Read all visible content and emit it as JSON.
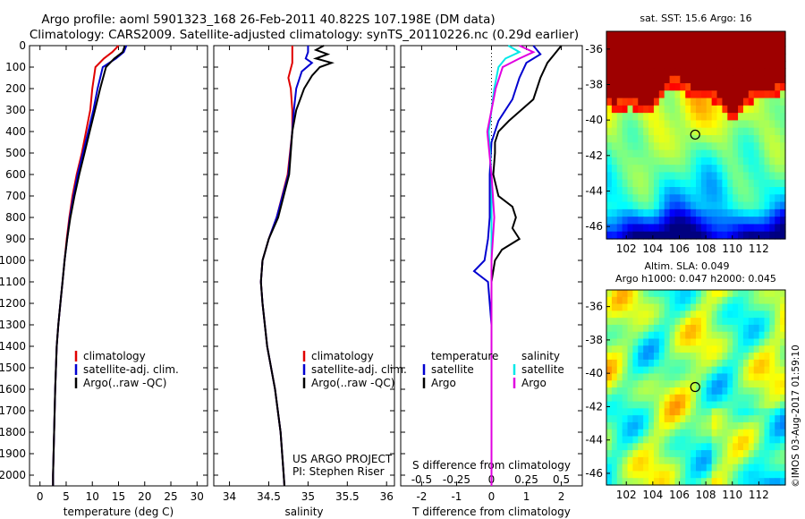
{
  "title": {
    "line1": "Argo profile: aoml 5901323_168 26-Feb-2011 40.822S 107.198E (DM data)",
    "line2": "Climatology: CARS2009. Satellite-adjusted climatology: synTS_20110226.nc (0.29d earlier)"
  },
  "colors": {
    "climatology": "#e00000",
    "satellite": "#0000d0",
    "argo": "#000000",
    "sal_satellite": "#00e8e8",
    "sal_argo": "#e000e0"
  },
  "depth_ticks": [
    0,
    100,
    200,
    300,
    400,
    500,
    600,
    700,
    800,
    900,
    1000,
    1100,
    1200,
    1300,
    1400,
    1500,
    1600,
    1700,
    1800,
    1900,
    2000
  ],
  "panels": {
    "temperature": {
      "xlabel": "temperature (deg C)",
      "xlim": [
        -2,
        32
      ],
      "xticks": [
        0,
        5,
        10,
        15,
        20,
        25,
        30
      ],
      "xtick_labels": [
        "0",
        "5",
        "10",
        "15",
        "20",
        "25",
        "30"
      ],
      "legend": [
        "climatology",
        "satellite-adj. clim.",
        "Argo(..raw -QC)"
      ]
    },
    "salinity": {
      "xlabel": "salinity",
      "xlim": [
        33.8,
        36.1
      ],
      "xticks": [
        34,
        34.5,
        35,
        35.5,
        36
      ],
      "xtick_labels": [
        "34",
        "34.5",
        "35",
        "35.5",
        "36"
      ],
      "legend": [
        "climatology",
        "satellite-adj. clim.",
        "Argo(..raw -QC)"
      ],
      "credit1": "US ARGO PROJECT",
      "credit2": "PI: Stephen Riser"
    },
    "difference": {
      "xlabel": "T difference from climatology",
      "top_label": "S difference from climatology",
      "xlim": [
        -2.6,
        2.6
      ],
      "xticks": [
        -2,
        -1,
        0,
        1,
        2
      ],
      "xtick_labels": [
        "-2",
        "-1",
        "0",
        "1",
        "2"
      ],
      "sticks": [
        -0.5,
        -0.25,
        0,
        0.25,
        0.5
      ],
      "stick_labels": [
        "-0.5",
        "-0.25",
        "0",
        "0.25",
        "0.5"
      ],
      "legend_head_t": "temperature",
      "legend_head_s": "salinity",
      "legend_t": [
        "satellite",
        "Argo"
      ],
      "legend_s": [
        "satellite",
        "Argo"
      ]
    }
  },
  "maps": {
    "sst_title": "sat. SST: 15.6 Argo: 16",
    "sla_title1": "Altim. SLA: 0.049",
    "sla_title2": "Argo h1000: 0.047 h2000: 0.045",
    "xticks": [
      102,
      104,
      106,
      108,
      110,
      112
    ],
    "xlim": [
      100.5,
      114
    ],
    "yticks": [
      -36,
      -38,
      -40,
      -42,
      -44,
      -46
    ],
    "ylim": [
      -35,
      -46.7
    ],
    "argo_lon": 107.198,
    "argo_lat": -40.822
  },
  "footer": "©IMOS 03-Aug-2017 01:59:10",
  "chart_data": [
    {
      "type": "line",
      "title": "",
      "xlabel": "temperature (deg C)",
      "ylabel": "",
      "ylim": [
        0,
        2050
      ],
      "series": [
        {
          "name": "climatology",
          "depth": [
            0,
            30,
            60,
            100,
            200,
            300,
            400,
            500,
            600,
            700,
            800,
            900,
            1000,
            1100,
            1200,
            1300,
            1400,
            1600,
            1800,
            2000,
            2050
          ],
          "x": [
            15.0,
            13.8,
            12.2,
            10.6,
            10.0,
            9.6,
            8.8,
            8.0,
            7.0,
            6.2,
            5.6,
            5.1,
            4.7,
            4.3,
            3.9,
            3.5,
            3.2,
            2.9,
            2.7,
            2.5,
            2.5
          ]
        },
        {
          "name": "satellite-adj. clim.",
          "depth": [
            0,
            30,
            60,
            100,
            200,
            300,
            400,
            500,
            600,
            700,
            800,
            900,
            1000,
            1100,
            1200,
            1300,
            1400,
            1600,
            1800,
            2000,
            2050
          ],
          "x": [
            16.5,
            16.0,
            14.5,
            12.0,
            11.0,
            10.2,
            9.2,
            8.2,
            7.2,
            6.4,
            5.7,
            5.2,
            4.7,
            4.3,
            3.9,
            3.5,
            3.2,
            2.9,
            2.7,
            2.5,
            2.5
          ]
        },
        {
          "name": "Argo(..raw -QC)",
          "depth": [
            0,
            30,
            60,
            100,
            200,
            300,
            400,
            500,
            600,
            700,
            800,
            900,
            1000,
            1100,
            1200,
            1300,
            1400,
            1600,
            1800,
            2000,
            2050
          ],
          "x": [
            16.2,
            15.8,
            14.2,
            12.6,
            11.5,
            10.5,
            9.5,
            8.5,
            7.5,
            6.6,
            5.8,
            5.2,
            4.7,
            4.3,
            3.9,
            3.5,
            3.2,
            2.9,
            2.7,
            2.5,
            2.5
          ]
        }
      ]
    },
    {
      "type": "line",
      "title": "",
      "xlabel": "salinity",
      "ylabel": "",
      "ylim": [
        0,
        2050
      ],
      "series": [
        {
          "name": "climatology",
          "depth": [
            0,
            80,
            150,
            200,
            300,
            400,
            600,
            800,
            900,
            1000,
            1100,
            1200,
            1400,
            1600,
            1800,
            2000,
            2050
          ],
          "x": [
            34.8,
            34.8,
            34.75,
            34.78,
            34.8,
            34.8,
            34.74,
            34.6,
            34.5,
            34.42,
            34.4,
            34.42,
            34.48,
            34.58,
            34.65,
            34.69,
            34.7
          ]
        },
        {
          "name": "satellite-adj. clim.",
          "depth": [
            0,
            30,
            60,
            80,
            120,
            200,
            300,
            400,
            600,
            800,
            900,
            1000,
            1100,
            1200,
            1400,
            1600,
            1800,
            2000,
            2050
          ],
          "x": [
            35.0,
            35.0,
            34.97,
            35.05,
            34.92,
            34.85,
            34.82,
            34.8,
            34.75,
            34.6,
            34.5,
            34.42,
            34.4,
            34.42,
            34.48,
            34.58,
            34.65,
            34.69,
            34.7
          ]
        },
        {
          "name": "Argo(..raw -QC)",
          "depth": [
            0,
            20,
            40,
            60,
            80,
            100,
            140,
            200,
            300,
            400,
            600,
            800,
            900,
            1000,
            1100,
            1200,
            1400,
            1600,
            1800,
            2000,
            2050
          ],
          "x": [
            35.2,
            35.1,
            35.25,
            35.1,
            35.3,
            35.15,
            35.05,
            34.95,
            34.85,
            34.8,
            34.76,
            34.62,
            34.5,
            34.42,
            34.4,
            34.42,
            34.48,
            34.58,
            34.65,
            34.69,
            34.7
          ]
        }
      ]
    },
    {
      "type": "line",
      "title": "",
      "xlabel": "T difference from climatology",
      "ylabel": "",
      "ylim": [
        0,
        2050
      ],
      "series": [
        {
          "name": "temperature satellite",
          "depth": [
            0,
            40,
            80,
            150,
            250,
            350,
            450,
            600,
            800,
            900,
            1000,
            1050,
            1100,
            1300,
            1500,
            2000,
            2050
          ],
          "x": [
            1.2,
            1.4,
            1.0,
            0.8,
            0.6,
            0.2,
            0.0,
            -0.05,
            -0.05,
            -0.1,
            -0.2,
            -0.5,
            -0.1,
            0.0,
            0.0,
            0.0,
            0.0
          ]
        },
        {
          "name": "temperature Argo",
          "depth": [
            0,
            40,
            80,
            150,
            250,
            350,
            400,
            450,
            500,
            600,
            700,
            750,
            800,
            850,
            900,
            950,
            1000,
            1100,
            1300,
            1500,
            2000,
            2050
          ],
          "x": [
            2.0,
            1.8,
            1.6,
            1.4,
            1.2,
            0.5,
            0.2,
            0.1,
            0.1,
            0.05,
            0.2,
            0.6,
            0.7,
            0.6,
            0.8,
            0.3,
            0.1,
            0.0,
            0.0,
            0.0,
            0.0,
            0.0
          ]
        },
        {
          "name": "salinity satellite",
          "depth": [
            0,
            30,
            60,
            100,
            200,
            300,
            400,
            600,
            800,
            1000,
            1200,
            1500,
            2000,
            2050
          ],
          "x": [
            0.12,
            0.2,
            0.1,
            0.05,
            0.02,
            0.0,
            -0.02,
            0.0,
            0.0,
            0.0,
            0.0,
            0.0,
            0.0,
            0.0
          ]
        },
        {
          "name": "salinity Argo",
          "depth": [
            0,
            30,
            60,
            100,
            200,
            300,
            400,
            600,
            800,
            1000,
            1200,
            1500,
            2000,
            2050
          ],
          "x": [
            0.2,
            0.3,
            0.2,
            0.08,
            0.03,
            0.0,
            -0.03,
            0.0,
            0.02,
            0.0,
            0.0,
            0.0,
            0.0,
            0.0
          ]
        }
      ]
    },
    {
      "type": "heatmap",
      "title": "sat. SST: 15.6 Argo: 16",
      "xlabel": "",
      "ylabel": "",
      "xlim": [
        100.5,
        114
      ],
      "ylim": [
        -46.7,
        -35
      ]
    },
    {
      "type": "heatmap",
      "title": "Altim. SLA: 0.049",
      "xlabel": "",
      "ylabel": "",
      "xlim": [
        100.5,
        114
      ],
      "ylim": [
        -46.7,
        -35
      ]
    }
  ]
}
